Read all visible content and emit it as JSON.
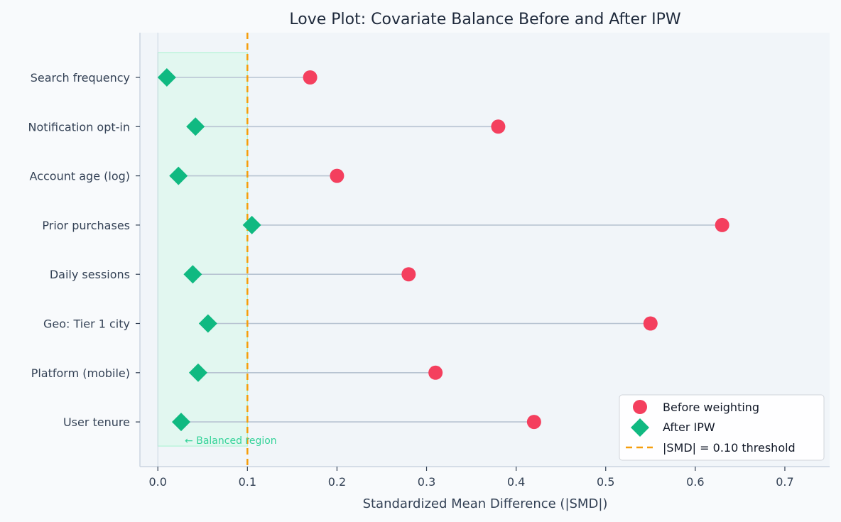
{
  "chart_data": {
    "type": "dot-plot",
    "title": "Love Plot: Covariate Balance Before and After IPW",
    "xlabel": "Standardized Mean Difference (|SMD|)",
    "ylabel": "",
    "xlim": [
      -0.02,
      0.75
    ],
    "xticks": [
      0.0,
      0.1,
      0.2,
      0.3,
      0.4,
      0.5,
      0.6,
      0.7
    ],
    "xtick_labels": [
      "0.0",
      "0.1",
      "0.2",
      "0.3",
      "0.4",
      "0.5",
      "0.6",
      "0.7"
    ],
    "categories": [
      "Search frequency",
      "Notification opt-in",
      "Account age (log)",
      "Prior purchases",
      "Daily sessions",
      "Geo: Tier 1 city",
      "Platform (mobile)",
      "User tenure"
    ],
    "series": [
      {
        "name": "Before weighting",
        "marker": "circle",
        "color": "#f43f5e",
        "values": [
          0.17,
          0.38,
          0.2,
          0.63,
          0.28,
          0.55,
          0.31,
          0.42
        ]
      },
      {
        "name": "After IPW",
        "marker": "diamond",
        "color": "#10b981",
        "values": [
          0.01,
          0.042,
          0.023,
          0.105,
          0.039,
          0.056,
          0.045,
          0.026
        ]
      }
    ],
    "threshold": {
      "value": 0.1,
      "label": "|SMD| = 0.10 threshold",
      "color": "#f59e0b"
    },
    "balanced_region": {
      "from": 0.0,
      "to": 0.1,
      "label": "← Balanced region"
    },
    "legend_position": "bottom-right",
    "grid": false
  }
}
